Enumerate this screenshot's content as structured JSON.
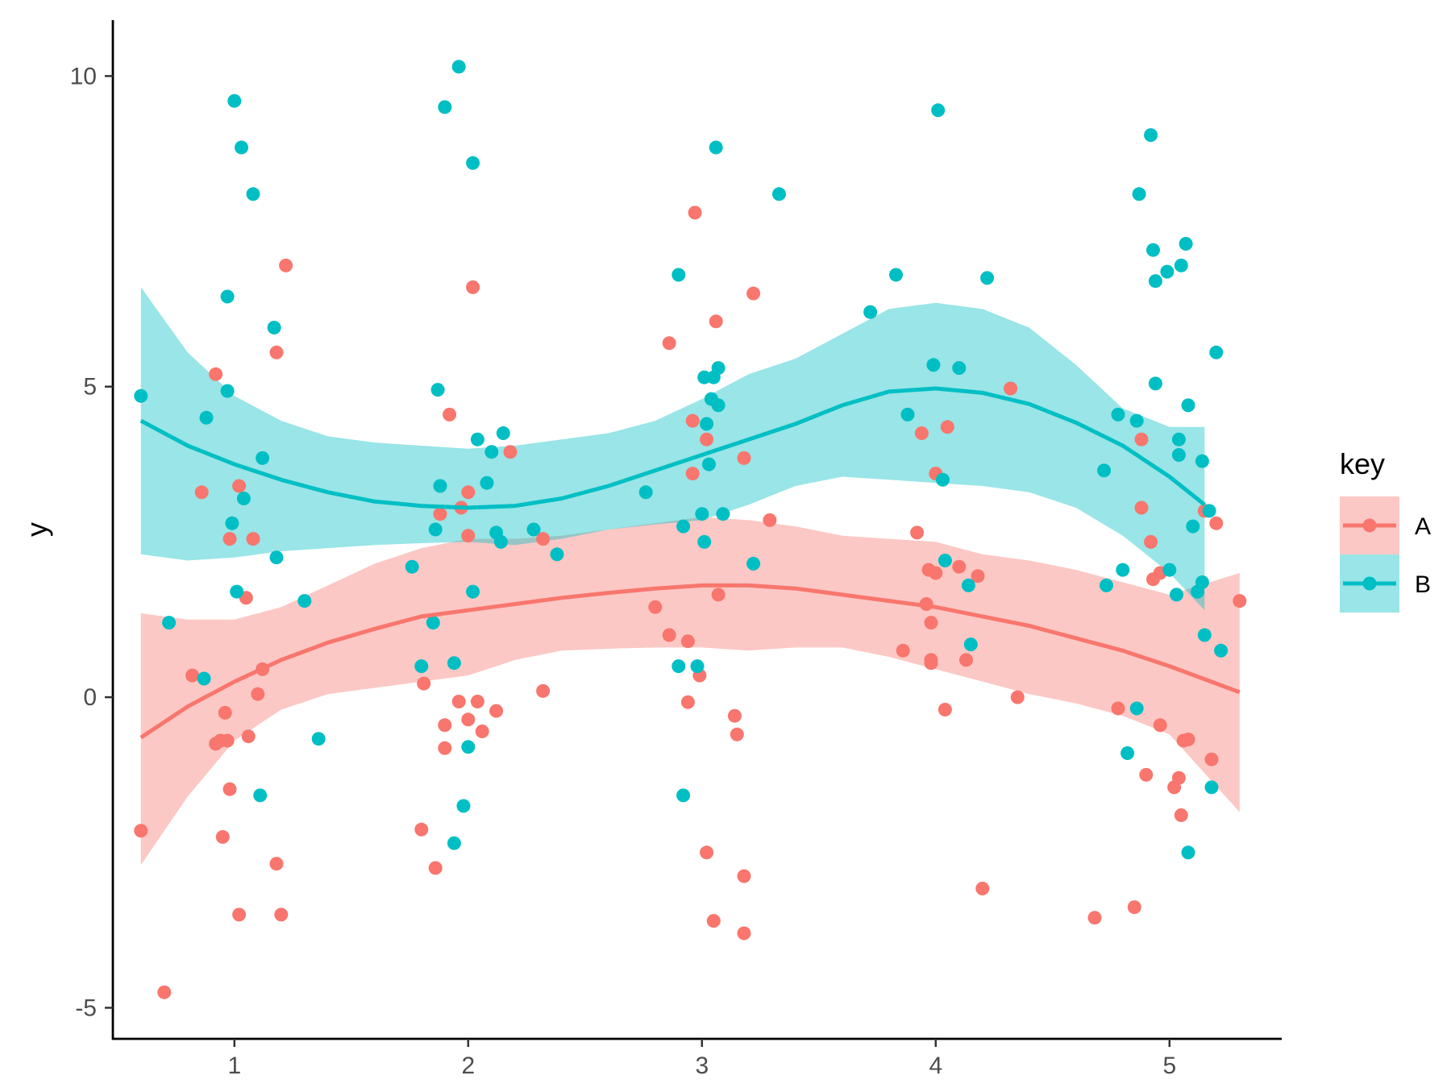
{
  "chart_data": {
    "type": "scatter",
    "title": "",
    "xlabel": "",
    "ylabel": "y",
    "xlim": [
      0.48,
      5.48
    ],
    "ylim": [
      -5.5,
      10.9
    ],
    "x_ticks": [
      {
        "value": 1,
        "label": "1"
      },
      {
        "value": 2,
        "label": "2"
      },
      {
        "value": 3,
        "label": "3"
      },
      {
        "value": 4,
        "label": "4"
      },
      {
        "value": 5,
        "label": "5"
      }
    ],
    "y_ticks": [
      {
        "value": -5,
        "label": "-5"
      },
      {
        "value": 0,
        "label": "0"
      },
      {
        "value": 5,
        "label": "5"
      },
      {
        "value": 10,
        "label": "10"
      }
    ],
    "grid": false,
    "legend": {
      "title": "key",
      "position": "right"
    },
    "series": [
      {
        "name": "A",
        "color": "#F8766D",
        "points": [
          [
            0.6,
            -2.15
          ],
          [
            0.7,
            -4.75
          ],
          [
            0.82,
            0.35
          ],
          [
            0.86,
            3.3
          ],
          [
            0.92,
            5.2
          ],
          [
            0.92,
            -0.75
          ],
          [
            0.94,
            -0.7
          ],
          [
            0.95,
            -2.25
          ],
          [
            0.96,
            -0.25
          ],
          [
            0.97,
            -0.7
          ],
          [
            0.98,
            -1.48
          ],
          [
            0.98,
            2.55
          ],
          [
            1.02,
            3.4
          ],
          [
            1.02,
            -3.5
          ],
          [
            1.05,
            1.6
          ],
          [
            1.06,
            -0.63
          ],
          [
            1.08,
            2.55
          ],
          [
            1.1,
            0.05
          ],
          [
            1.12,
            0.45
          ],
          [
            1.18,
            5.55
          ],
          [
            1.18,
            -2.68
          ],
          [
            1.2,
            -3.5
          ],
          [
            1.22,
            6.95
          ],
          [
            1.8,
            -2.13
          ],
          [
            1.81,
            0.22
          ],
          [
            1.86,
            -2.75
          ],
          [
            1.88,
            2.95
          ],
          [
            1.9,
            -0.45
          ],
          [
            1.9,
            -0.82
          ],
          [
            1.92,
            4.55
          ],
          [
            1.96,
            -0.07
          ],
          [
            1.97,
            3.05
          ],
          [
            2.0,
            3.3
          ],
          [
            2.0,
            2.6
          ],
          [
            2.0,
            -0.36
          ],
          [
            2.02,
            6.6
          ],
          [
            2.04,
            -0.07
          ],
          [
            2.06,
            -0.55
          ],
          [
            2.12,
            -0.22
          ],
          [
            2.18,
            3.95
          ],
          [
            2.32,
            2.55
          ],
          [
            2.32,
            0.1
          ],
          [
            2.8,
            1.45
          ],
          [
            2.86,
            5.7
          ],
          [
            2.86,
            1.0
          ],
          [
            2.94,
            0.9
          ],
          [
            2.94,
            -0.08
          ],
          [
            2.96,
            4.45
          ],
          [
            2.96,
            3.6
          ],
          [
            2.97,
            7.8
          ],
          [
            2.99,
            0.35
          ],
          [
            3.02,
            4.15
          ],
          [
            3.02,
            -2.5
          ],
          [
            3.05,
            -3.6
          ],
          [
            3.06,
            6.05
          ],
          [
            3.07,
            1.65
          ],
          [
            3.14,
            -0.3
          ],
          [
            3.15,
            -0.6
          ],
          [
            3.18,
            3.85
          ],
          [
            3.18,
            -2.88
          ],
          [
            3.18,
            -3.8
          ],
          [
            3.22,
            6.5
          ],
          [
            3.29,
            2.85
          ],
          [
            3.86,
            0.75
          ],
          [
            3.92,
            2.65
          ],
          [
            3.94,
            4.25
          ],
          [
            3.96,
            1.5
          ],
          [
            3.97,
            2.05
          ],
          [
            3.98,
            1.2
          ],
          [
            3.98,
            0.6
          ],
          [
            3.98,
            0.55
          ],
          [
            4.0,
            3.6
          ],
          [
            4.0,
            2.0
          ],
          [
            4.04,
            -0.2
          ],
          [
            4.05,
            4.35
          ],
          [
            4.1,
            2.1
          ],
          [
            4.13,
            0.6
          ],
          [
            4.18,
            1.95
          ],
          [
            4.2,
            -3.08
          ],
          [
            4.32,
            4.97
          ],
          [
            4.35,
            0.0
          ],
          [
            4.68,
            -3.55
          ],
          [
            4.78,
            -0.18
          ],
          [
            4.85,
            -3.38
          ],
          [
            4.88,
            3.05
          ],
          [
            4.88,
            4.15
          ],
          [
            4.9,
            -1.25
          ],
          [
            4.92,
            2.5
          ],
          [
            4.93,
            1.9
          ],
          [
            4.96,
            2.0
          ],
          [
            4.96,
            -0.45
          ],
          [
            5.02,
            -1.45
          ],
          [
            5.04,
            -1.3
          ],
          [
            5.05,
            -1.9
          ],
          [
            5.06,
            -0.7
          ],
          [
            5.08,
            -0.68
          ],
          [
            5.15,
            3.0
          ],
          [
            5.18,
            -1.0
          ],
          [
            5.2,
            2.8
          ],
          [
            5.3,
            1.55
          ]
        ]
      },
      {
        "name": "B",
        "color": "#00BFC4",
        "points": [
          [
            0.6,
            4.85
          ],
          [
            0.72,
            1.2
          ],
          [
            0.87,
            0.3
          ],
          [
            0.88,
            4.5
          ],
          [
            0.97,
            6.45
          ],
          [
            0.97,
            4.93
          ],
          [
            0.99,
            2.8
          ],
          [
            1.0,
            9.6
          ],
          [
            1.01,
            1.7
          ],
          [
            1.03,
            8.85
          ],
          [
            1.04,
            3.2
          ],
          [
            1.08,
            8.1
          ],
          [
            1.11,
            -1.58
          ],
          [
            1.12,
            3.85
          ],
          [
            1.17,
            5.95
          ],
          [
            1.18,
            2.25
          ],
          [
            1.3,
            1.55
          ],
          [
            1.36,
            -0.67
          ],
          [
            1.76,
            2.1
          ],
          [
            1.8,
            0.5
          ],
          [
            1.85,
            1.2
          ],
          [
            1.86,
            2.7
          ],
          [
            1.87,
            4.95
          ],
          [
            1.88,
            3.4
          ],
          [
            1.9,
            9.5
          ],
          [
            1.94,
            0.55
          ],
          [
            1.94,
            -2.35
          ],
          [
            1.96,
            10.15
          ],
          [
            1.98,
            -1.75
          ],
          [
            2.0,
            -0.8
          ],
          [
            2.02,
            8.6
          ],
          [
            2.02,
            1.7
          ],
          [
            2.04,
            4.15
          ],
          [
            2.08,
            3.45
          ],
          [
            2.1,
            3.95
          ],
          [
            2.12,
            2.65
          ],
          [
            2.14,
            2.5
          ],
          [
            2.15,
            4.25
          ],
          [
            2.28,
            2.7
          ],
          [
            2.38,
            2.3
          ],
          [
            2.76,
            3.3
          ],
          [
            2.9,
            6.8
          ],
          [
            2.9,
            0.5
          ],
          [
            2.92,
            2.75
          ],
          [
            2.92,
            -1.58
          ],
          [
            2.98,
            0.5
          ],
          [
            3.0,
            2.95
          ],
          [
            3.01,
            2.5
          ],
          [
            3.01,
            5.15
          ],
          [
            3.02,
            4.4
          ],
          [
            3.03,
            3.75
          ],
          [
            3.04,
            4.8
          ],
          [
            3.05,
            5.15
          ],
          [
            3.06,
            8.85
          ],
          [
            3.07,
            4.7
          ],
          [
            3.07,
            5.3
          ],
          [
            3.09,
            2.95
          ],
          [
            3.22,
            2.15
          ],
          [
            3.33,
            8.1
          ],
          [
            3.72,
            6.2
          ],
          [
            3.83,
            6.8
          ],
          [
            3.88,
            4.55
          ],
          [
            3.99,
            5.35
          ],
          [
            4.01,
            9.45
          ],
          [
            4.03,
            3.5
          ],
          [
            4.04,
            2.2
          ],
          [
            4.1,
            5.3
          ],
          [
            4.14,
            1.8
          ],
          [
            4.15,
            0.85
          ],
          [
            4.22,
            6.75
          ],
          [
            4.72,
            3.65
          ],
          [
            4.73,
            1.8
          ],
          [
            4.78,
            4.55
          ],
          [
            4.8,
            2.05
          ],
          [
            4.82,
            -0.9
          ],
          [
            4.86,
            4.45
          ],
          [
            4.86,
            -0.18
          ],
          [
            4.87,
            8.1
          ],
          [
            4.92,
            9.05
          ],
          [
            4.93,
            7.2
          ],
          [
            4.94,
            5.05
          ],
          [
            4.94,
            6.7
          ],
          [
            4.99,
            6.85
          ],
          [
            5.0,
            2.05
          ],
          [
            5.03,
            1.65
          ],
          [
            5.04,
            4.15
          ],
          [
            5.04,
            3.9
          ],
          [
            5.05,
            6.95
          ],
          [
            5.07,
            7.3
          ],
          [
            5.08,
            4.7
          ],
          [
            5.08,
            -2.5
          ],
          [
            5.1,
            2.75
          ],
          [
            5.12,
            1.7
          ],
          [
            5.14,
            3.8
          ],
          [
            5.14,
            1.85
          ],
          [
            5.15,
            1.0
          ],
          [
            5.17,
            3.0
          ],
          [
            5.18,
            -1.45
          ],
          [
            5.2,
            5.55
          ],
          [
            5.22,
            0.75
          ]
        ]
      }
    ],
    "smooth": [
      {
        "series": "A",
        "color": "#F8766D",
        "fill": "#F8766D",
        "x": [
          0.6,
          0.8,
          1.0,
          1.2,
          1.4,
          1.6,
          1.8,
          2.0,
          2.2,
          2.4,
          2.6,
          2.8,
          3.0,
          3.2,
          3.4,
          3.6,
          3.8,
          4.0,
          4.2,
          4.4,
          4.6,
          4.8,
          5.0,
          5.3
        ],
        "y": [
          -0.65,
          -0.15,
          0.25,
          0.6,
          0.88,
          1.1,
          1.3,
          1.4,
          1.5,
          1.6,
          1.68,
          1.75,
          1.8,
          1.8,
          1.75,
          1.65,
          1.55,
          1.45,
          1.3,
          1.15,
          0.95,
          0.75,
          0.5,
          0.08
        ],
        "lower": [
          -2.7,
          -1.6,
          -0.7,
          -0.2,
          0.05,
          0.15,
          0.25,
          0.35,
          0.6,
          0.75,
          0.78,
          0.8,
          0.8,
          0.75,
          0.8,
          0.8,
          0.65,
          0.45,
          0.25,
          0.05,
          -0.1,
          -0.3,
          -0.6,
          -1.85
        ],
        "upper": [
          1.35,
          1.25,
          1.25,
          1.45,
          1.8,
          2.15,
          2.4,
          2.55,
          2.55,
          2.6,
          2.7,
          2.8,
          2.9,
          2.85,
          2.75,
          2.6,
          2.55,
          2.5,
          2.3,
          2.2,
          2.05,
          1.85,
          1.65,
          2.0
        ]
      },
      {
        "series": "B",
        "color": "#00BFC4",
        "fill": "#00BFC4",
        "x": [
          0.6,
          0.8,
          1.0,
          1.2,
          1.4,
          1.6,
          1.8,
          2.0,
          2.2,
          2.4,
          2.6,
          2.8,
          3.0,
          3.2,
          3.4,
          3.6,
          3.8,
          4.0,
          4.2,
          4.4,
          4.6,
          4.8,
          5.0,
          5.15
        ],
        "y": [
          4.45,
          4.05,
          3.75,
          3.5,
          3.3,
          3.15,
          3.08,
          3.05,
          3.08,
          3.2,
          3.4,
          3.65,
          3.9,
          4.15,
          4.4,
          4.7,
          4.92,
          4.97,
          4.9,
          4.72,
          4.42,
          4.05,
          3.55,
          3.1
        ],
        "lower": [
          2.3,
          2.2,
          2.25,
          2.35,
          2.4,
          2.45,
          2.48,
          2.5,
          2.45,
          2.55,
          2.7,
          2.78,
          2.85,
          3.1,
          3.4,
          3.55,
          3.5,
          3.45,
          3.4,
          3.3,
          3.05,
          2.6,
          2.0,
          1.4
        ],
        "upper": [
          6.6,
          5.55,
          4.85,
          4.45,
          4.2,
          4.1,
          4.05,
          4.0,
          4.05,
          4.15,
          4.25,
          4.45,
          4.8,
          5.2,
          5.45,
          5.85,
          6.25,
          6.35,
          6.25,
          5.95,
          5.35,
          4.65,
          4.35,
          4.35
        ]
      }
    ]
  }
}
